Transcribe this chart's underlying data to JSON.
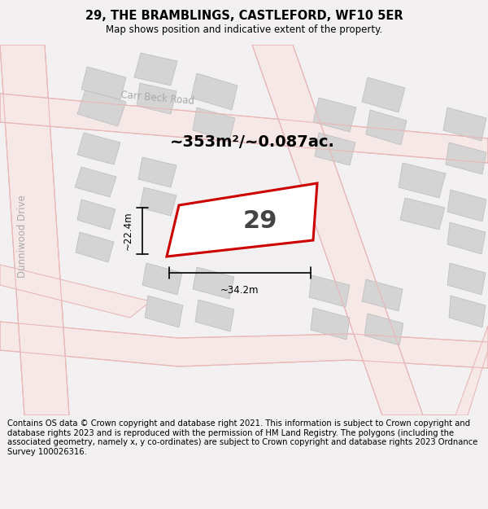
{
  "title": "29, THE BRAMBLINGS, CASTLEFORD, WF10 5ER",
  "subtitle": "Map shows position and indicative extent of the property.",
  "footer": "Contains OS data © Crown copyright and database right 2021. This information is subject to Crown copyright and database rights 2023 and is reproduced with the permission of HM Land Registry. The polygons (including the associated geometry, namely x, y co-ordinates) are subject to Crown copyright and database rights 2023 Ordnance Survey 100026316.",
  "area_label": "~353m²/~0.087ac.",
  "width_label": "~34.2m",
  "height_label": "~22.4m",
  "property_number": "29",
  "bg_color": "#f2f0f0",
  "white_bg": "#ffffff",
  "road_fill": "#f7e8e8",
  "road_edge": "#e8b8b8",
  "bld_fill": "#d4d4d4",
  "bld_edge": "#bbbbbb",
  "highlight_color": "#cc0000",
  "highlight_fill": "#ffffff",
  "title_fontsize": 10.5,
  "subtitle_fontsize": 8.5,
  "footer_fontsize": 7.2,
  "area_fontsize": 14,
  "num_fontsize": 22,
  "dim_fontsize": 8.5
}
